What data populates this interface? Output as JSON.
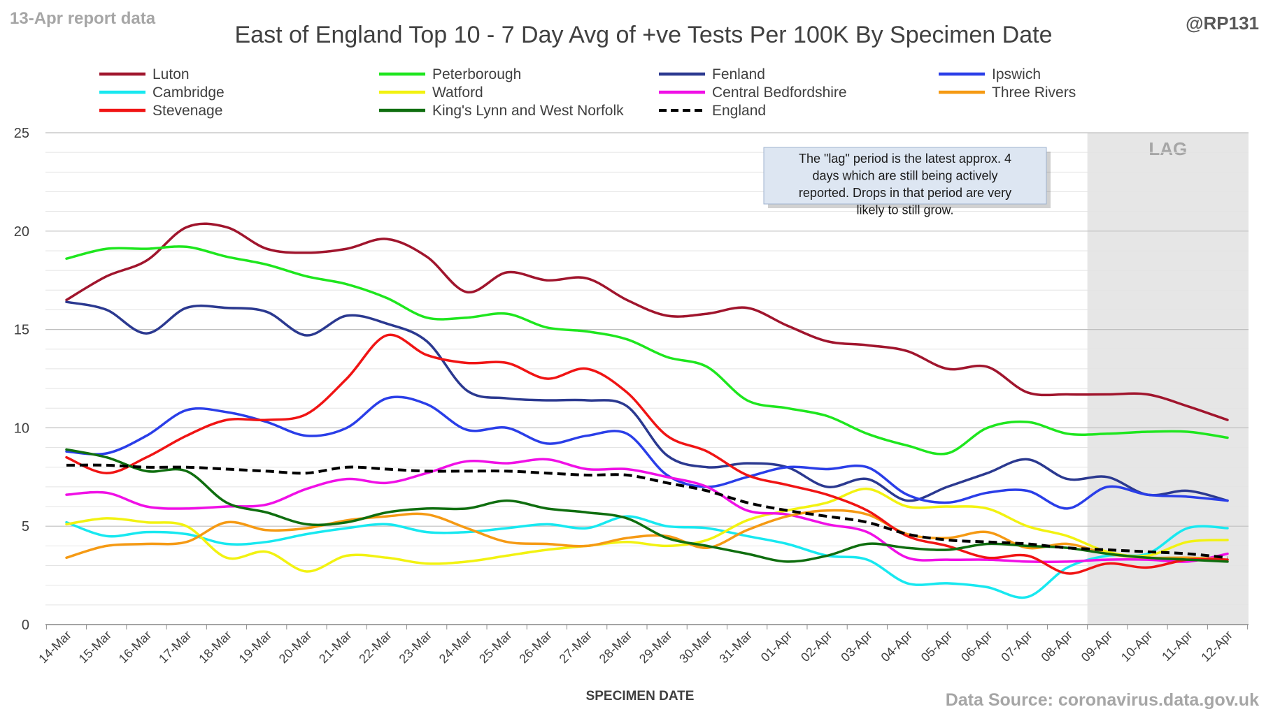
{
  "header": {
    "report_label": "13-Apr report data",
    "handle": "@RP131",
    "source": "Data Source: coronavirus.data.gov.uk"
  },
  "chart_data": {
    "type": "line",
    "title": "East of England Top 10 - 7 Day Avg of +ve Tests Per 100K By Specimen Date",
    "xlabel": "SPECIMEN DATE",
    "ylabel": "",
    "ylim": [
      0,
      25
    ],
    "yticks": [
      0,
      5,
      10,
      15,
      20,
      25
    ],
    "grid": true,
    "legend_position": "top",
    "categories": [
      "14-Mar",
      "15-Mar",
      "16-Mar",
      "17-Mar",
      "18-Mar",
      "19-Mar",
      "20-Mar",
      "21-Mar",
      "22-Mar",
      "23-Mar",
      "24-Mar",
      "25-Mar",
      "26-Mar",
      "27-Mar",
      "28-Mar",
      "29-Mar",
      "30-Mar",
      "31-Mar",
      "01-Apr",
      "02-Apr",
      "03-Apr",
      "04-Apr",
      "05-Apr",
      "06-Apr",
      "07-Apr",
      "08-Apr",
      "09-Apr",
      "10-Apr",
      "11-Apr",
      "12-Apr"
    ],
    "lag": {
      "label": "LAG",
      "start_category": "09-Apr",
      "end_category": "12-Apr",
      "shade_color": "#e6e6e6",
      "note": "The \"lag\" period is the latest approx. 4 days which are still being actively reported.  Drops in that period are very likely to still grow."
    },
    "series": [
      {
        "name": "Luton",
        "color": "#a0152d",
        "dashed": false,
        "values": [
          16.5,
          17.7,
          18.5,
          20.2,
          20.2,
          19.1,
          18.9,
          19.1,
          19.6,
          18.7,
          16.9,
          17.9,
          17.5,
          17.6,
          16.5,
          15.7,
          15.8,
          16.1,
          15.2,
          14.4,
          14.2,
          13.9,
          13.0,
          13.1,
          11.8,
          11.7,
          11.7,
          11.7,
          11.1,
          10.4
        ]
      },
      {
        "name": "Peterborough",
        "color": "#1ee61e",
        "dashed": false,
        "values": [
          18.6,
          19.1,
          19.1,
          19.2,
          18.7,
          18.3,
          17.7,
          17.3,
          16.6,
          15.6,
          15.6,
          15.8,
          15.1,
          14.9,
          14.5,
          13.6,
          13.1,
          11.4,
          11.0,
          10.6,
          9.7,
          9.1,
          8.7,
          10.0,
          10.3,
          9.7,
          9.7,
          9.8,
          9.8,
          9.5
        ]
      },
      {
        "name": "Fenland",
        "color": "#2b3990",
        "dashed": false,
        "values": [
          16.4,
          16.0,
          14.8,
          16.1,
          16.1,
          15.9,
          14.7,
          15.7,
          15.3,
          14.4,
          11.9,
          11.5,
          11.4,
          11.4,
          11.1,
          8.6,
          8.0,
          8.2,
          8.0,
          7.0,
          7.4,
          6.3,
          7.0,
          7.7,
          8.4,
          7.4,
          7.5,
          6.6,
          6.8,
          6.3
        ]
      },
      {
        "name": "Ipswich",
        "color": "#2a3ee8",
        "dashed": false,
        "values": [
          8.8,
          8.7,
          9.6,
          10.9,
          10.8,
          10.3,
          9.6,
          10.0,
          11.5,
          11.2,
          9.9,
          10.0,
          9.2,
          9.6,
          9.7,
          7.6,
          7.0,
          7.5,
          8.0,
          7.9,
          8.0,
          6.6,
          6.2,
          6.7,
          6.8,
          5.9,
          7.0,
          6.6,
          6.5,
          6.3
        ]
      },
      {
        "name": "Cambridge",
        "color": "#18e8f0",
        "dashed": false,
        "values": [
          5.2,
          4.5,
          4.7,
          4.6,
          4.1,
          4.2,
          4.6,
          4.9,
          5.1,
          4.7,
          4.7,
          4.9,
          5.1,
          4.9,
          5.5,
          5.0,
          4.9,
          4.5,
          4.1,
          3.5,
          3.3,
          2.1,
          2.1,
          1.9,
          1.4,
          2.9,
          3.5,
          3.6,
          4.9,
          4.9
        ]
      },
      {
        "name": "Watford",
        "color": "#f2f211",
        "dashed": false,
        "values": [
          5.1,
          5.4,
          5.2,
          5.0,
          3.4,
          3.7,
          2.7,
          3.5,
          3.4,
          3.1,
          3.2,
          3.5,
          3.8,
          4.0,
          4.2,
          4.0,
          4.3,
          5.3,
          5.8,
          6.2,
          6.9,
          6.0,
          6.0,
          5.9,
          5.0,
          4.5,
          3.7,
          3.5,
          4.2,
          4.3
        ]
      },
      {
        "name": "Central Bedfordshire",
        "color": "#f010e6",
        "dashed": false,
        "values": [
          6.6,
          6.7,
          6.0,
          5.9,
          6.0,
          6.1,
          6.9,
          7.4,
          7.2,
          7.7,
          8.3,
          8.2,
          8.4,
          7.9,
          7.9,
          7.5,
          7.0,
          5.8,
          5.6,
          5.1,
          4.7,
          3.4,
          3.3,
          3.3,
          3.2,
          3.2,
          3.3,
          3.3,
          3.2,
          3.6
        ]
      },
      {
        "name": "Three Rivers",
        "color": "#f59a14",
        "dashed": false,
        "values": [
          3.4,
          4.0,
          4.1,
          4.2,
          5.2,
          4.8,
          4.9,
          5.3,
          5.5,
          5.6,
          4.9,
          4.2,
          4.1,
          4.0,
          4.4,
          4.5,
          3.9,
          4.8,
          5.5,
          5.8,
          5.6,
          4.6,
          4.4,
          4.7,
          3.9,
          4.1,
          3.6,
          3.4,
          3.4,
          3.3
        ]
      },
      {
        "name": "Stevenage",
        "color": "#f01414",
        "dashed": false,
        "values": [
          8.5,
          7.7,
          8.5,
          9.6,
          10.4,
          10.4,
          10.7,
          12.5,
          14.7,
          13.7,
          13.3,
          13.3,
          12.5,
          13.0,
          11.8,
          9.6,
          8.8,
          7.6,
          7.1,
          6.6,
          5.8,
          4.5,
          4.0,
          3.4,
          3.5,
          2.6,
          3.1,
          2.9,
          3.3,
          3.3
        ]
      },
      {
        "name": "King's Lynn and West Norfolk",
        "color": "#0f6e0f",
        "dashed": false,
        "values": [
          8.9,
          8.5,
          7.8,
          7.8,
          6.2,
          5.7,
          5.1,
          5.2,
          5.7,
          5.9,
          5.9,
          6.3,
          5.9,
          5.7,
          5.4,
          4.4,
          4.0,
          3.6,
          3.2,
          3.5,
          4.1,
          3.9,
          3.8,
          4.1,
          4.0,
          3.9,
          3.6,
          3.4,
          3.3,
          3.2
        ]
      },
      {
        "name": "England",
        "color": "#000000",
        "dashed": true,
        "values": [
          8.1,
          8.1,
          8.0,
          8.0,
          7.9,
          7.8,
          7.7,
          8.0,
          7.9,
          7.8,
          7.8,
          7.8,
          7.7,
          7.6,
          7.6,
          7.2,
          6.8,
          6.2,
          5.8,
          5.5,
          5.2,
          4.6,
          4.3,
          4.2,
          4.1,
          3.9,
          3.8,
          3.7,
          3.6,
          3.4
        ]
      }
    ]
  }
}
